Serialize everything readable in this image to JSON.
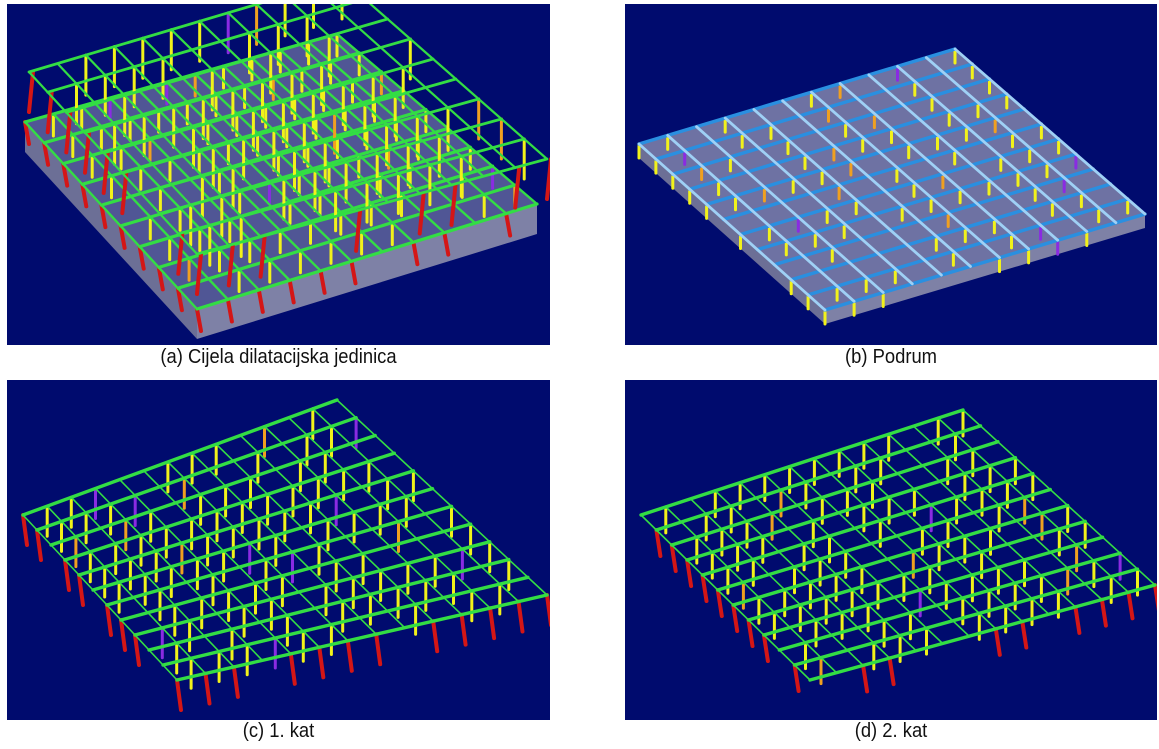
{
  "panels": [
    {
      "id": "a",
      "caption": "(a) Cijela dilatacijska jedinica"
    },
    {
      "id": "b",
      "caption": "(b) Podrum"
    },
    {
      "id": "c",
      "caption": "(c) 1. kat"
    },
    {
      "id": "d",
      "caption": "(d) 2. kat"
    }
  ],
  "colors": {
    "background": "#000b6e",
    "slab": "#c8c8d0",
    "beam_green": "#33dd44",
    "beam_blue": "#2a8fe0",
    "column_yellow": "#f2f21a",
    "column_red": "#d41616",
    "column_orange": "#f0a020",
    "column_violet": "#8a2be2"
  }
}
